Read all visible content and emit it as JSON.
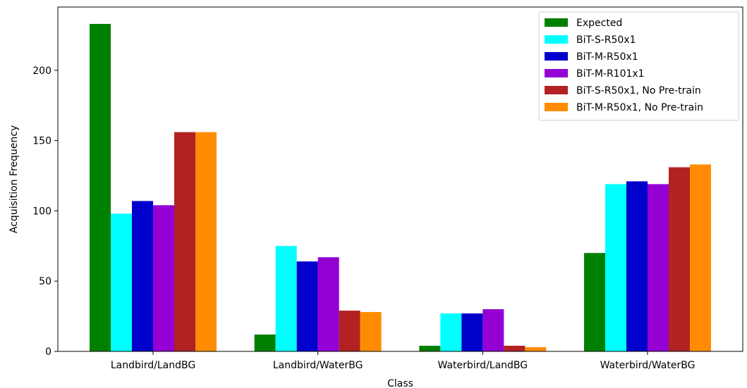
{
  "chart_data": {
    "type": "bar",
    "xlabel": "Class",
    "ylabel": "Acquisition Frequency",
    "categories": [
      "Landbird/LandBG",
      "Landbird/WaterBG",
      "Waterbird/LandBG",
      "Waterbird/WaterBG"
    ],
    "ylim": [
      0,
      245
    ],
    "yticks": [
      0,
      50,
      100,
      150,
      200
    ],
    "grid": false,
    "legend_position": "upper right",
    "series": [
      {
        "name": "Expected",
        "color": "#008000",
        "values": [
          233,
          12,
          4,
          70
        ]
      },
      {
        "name": "BiT-S-R50x1",
        "color": "#00ffff",
        "values": [
          98,
          75,
          27,
          119
        ]
      },
      {
        "name": "BiT-M-R50x1",
        "color": "#0000cd",
        "values": [
          107,
          64,
          27,
          121
        ]
      },
      {
        "name": "BiT-M-R101x1",
        "color": "#9400d3",
        "values": [
          104,
          67,
          30,
          119
        ]
      },
      {
        "name": "BiT-S-R50x1, No Pre-train",
        "color": "#b22222",
        "values": [
          156,
          29,
          4,
          131
        ]
      },
      {
        "name": "BiT-M-R50x1, No Pre-train",
        "color": "#ff8c00",
        "values": [
          156,
          28,
          3,
          133
        ]
      }
    ]
  }
}
